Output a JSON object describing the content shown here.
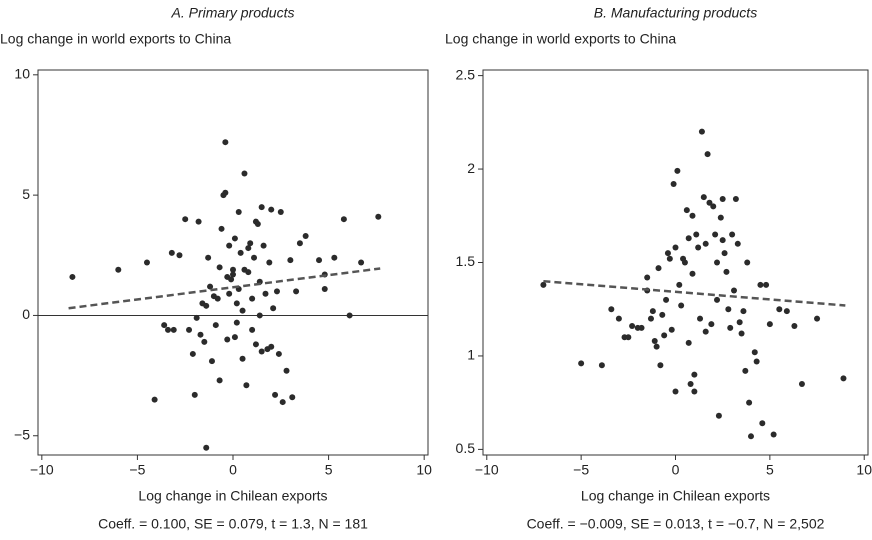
{
  "chart_data": [
    {
      "type": "scatter",
      "subtitle": "A. Primary products",
      "y_label": "Log change in world exports to China",
      "x_label": "Log change in Chilean exports",
      "note": "Coeff. = 0.100, SE = 0.079, t = 1.3, N = 181",
      "color": "#2b2b2b",
      "xlim": [
        -10.2,
        10.2
      ],
      "ylim": [
        -5.8,
        10.2
      ],
      "xticks": [
        {
          "value": -10,
          "label": "−10"
        },
        {
          "value": -5,
          "label": "−5"
        },
        0,
        5,
        10
      ],
      "yticks": [
        {
          "value": -5,
          "label": "−5"
        },
        0,
        5,
        10
      ],
      "hline": 0,
      "fit": {
        "x": [
          -8.6,
          7.7
        ],
        "y": [
          0.3,
          1.95
        ]
      },
      "x": [
        -8.4,
        -6,
        -4.5,
        -4.1,
        -3.6,
        -3.4,
        -3.2,
        -3.1,
        -2.8,
        -2.5,
        -2.3,
        -2.1,
        -2.0,
        -1.9,
        -1.7,
        -1.8,
        -1.6,
        -1.5,
        -1.4,
        -1.4,
        -1.3,
        -1.2,
        -1.1,
        -1.0,
        -0.9,
        -0.8,
        -0.7,
        -0.7,
        -0.6,
        -0.5,
        -0.4,
        -0.4,
        -0.3,
        -0.3,
        -0.2,
        -0.2,
        -0.1,
        0,
        0,
        0.1,
        0.1,
        0.2,
        0.2,
        0.3,
        0.3,
        0.4,
        0.5,
        0.5,
        0.6,
        0.6,
        0.7,
        0.8,
        0.8,
        0.9,
        1.0,
        1.0,
        1.1,
        1.2,
        1.2,
        1.3,
        1.4,
        1.4,
        1.5,
        1.5,
        1.6,
        1.7,
        1.8,
        1.9,
        2.0,
        2.0,
        2.1,
        2.2,
        2.3,
        2.4,
        2.5,
        2.6,
        2.8,
        3.1,
        3.0,
        3.3,
        3.5,
        3.8,
        4.5,
        4.8,
        4.8,
        5.3,
        5.8,
        6.1,
        6.7,
        7.6
      ],
      "values": [
        1.6,
        1.9,
        2.2,
        -3.5,
        -0.4,
        -0.6,
        2.6,
        -0.6,
        2.5,
        4.0,
        -0.6,
        -1.6,
        -3.3,
        -0.1,
        -0.8,
        3.9,
        0.5,
        -1.1,
        0.4,
        -5.5,
        2.4,
        1.2,
        -1.9,
        0.8,
        -0.4,
        0.7,
        2.0,
        -2.7,
        3.6,
        5.0,
        5.1,
        7.2,
        1.6,
        -1.0,
        2.9,
        0.9,
        1.5,
        1.9,
        1.7,
        -0.9,
        3.2,
        0.5,
        -0.3,
        4.3,
        1.1,
        2.6,
        -1.8,
        0.2,
        1.9,
        5.9,
        -2.9,
        1.8,
        2.8,
        3.0,
        0.7,
        -0.6,
        2.4,
        3.9,
        -1.2,
        3.8,
        1.4,
        0.0,
        4.5,
        -1.5,
        2.9,
        0.9,
        -1.4,
        2.2,
        -1.3,
        4.4,
        0.3,
        -3.3,
        1.0,
        -1.6,
        4.3,
        -3.6,
        -2.3,
        -3.4,
        2.3,
        1.0,
        3.0,
        3.3,
        2.3,
        1.7,
        1.1,
        2.4,
        4.0,
        0.0,
        2.2,
        4.1
      ]
    },
    {
      "type": "scatter",
      "subtitle": "B. Manufacturing products",
      "y_label": "Log change in world exports to China",
      "x_label": "Log change in Chilean exports",
      "note": "Coeff. = −0.009, SE = 0.013, t = −0.7, N = 2,502",
      "color": "#2b2b2b",
      "xlim": [
        -10.2,
        10.2
      ],
      "ylim": [
        0.47,
        2.53
      ],
      "xticks": [
        {
          "value": -10,
          "label": "−10"
        },
        {
          "value": -5,
          "label": "−5"
        },
        0,
        5,
        10
      ],
      "yticks": [
        0.5,
        1,
        1.5,
        2,
        2.5
      ],
      "fit": {
        "x": [
          -7,
          9
        ],
        "y": [
          1.4,
          1.27
        ]
      },
      "x": [
        -7,
        -5,
        -3.9,
        -3.4,
        -3,
        -2.7,
        -2.5,
        -2.3,
        -2,
        -1.8,
        -1.5,
        -1.5,
        -1.3,
        -1.2,
        -1.1,
        -1,
        -0.9,
        -0.8,
        -0.7,
        -0.6,
        -0.5,
        -0.4,
        -0.3,
        -0.2,
        -0.1,
        0,
        0,
        0.1,
        0.2,
        0.3,
        0.4,
        0.5,
        0.6,
        0.7,
        0.7,
        0.8,
        0.9,
        0.9,
        1.0,
        1.0,
        1.1,
        1.2,
        1.3,
        1.4,
        1.5,
        1.6,
        1.6,
        1.7,
        1.8,
        1.9,
        2.0,
        2.1,
        2.2,
        2.2,
        2.3,
        2.4,
        2.5,
        2.5,
        2.6,
        2.7,
        2.8,
        2.9,
        3.0,
        3.1,
        3.2,
        3.3,
        3.4,
        3.5,
        3.6,
        3.7,
        3.8,
        3.9,
        4.0,
        4.2,
        4.3,
        4.5,
        4.6,
        4.8,
        5.0,
        5.2,
        5.5,
        5.9,
        6.3,
        6.7,
        7.5,
        8.9
      ],
      "values": [
        1.38,
        0.96,
        0.95,
        1.25,
        1.2,
        1.1,
        1.1,
        1.16,
        1.15,
        1.15,
        1.35,
        1.42,
        1.2,
        1.24,
        1.08,
        1.05,
        1.47,
        0.95,
        1.22,
        1.11,
        1.3,
        1.55,
        1.52,
        1.14,
        1.92,
        1.58,
        0.81,
        1.99,
        1.38,
        1.27,
        1.52,
        1.5,
        1.78,
        1.63,
        1.07,
        0.85,
        1.75,
        1.44,
        0.81,
        0.9,
        1.65,
        1.58,
        1.2,
        2.2,
        1.85,
        1.13,
        1.6,
        2.08,
        1.82,
        1.17,
        1.8,
        1.65,
        1.3,
        1.5,
        0.68,
        1.74,
        1.84,
        1.62,
        1.55,
        1.45,
        1.25,
        1.15,
        1.65,
        1.35,
        1.84,
        1.6,
        1.18,
        1.12,
        1.24,
        0.92,
        1.5,
        0.75,
        0.57,
        1.02,
        0.97,
        1.38,
        0.64,
        1.38,
        1.17,
        0.58,
        1.25,
        1.24,
        1.16,
        0.85,
        1.2,
        0.88
      ]
    }
  ]
}
